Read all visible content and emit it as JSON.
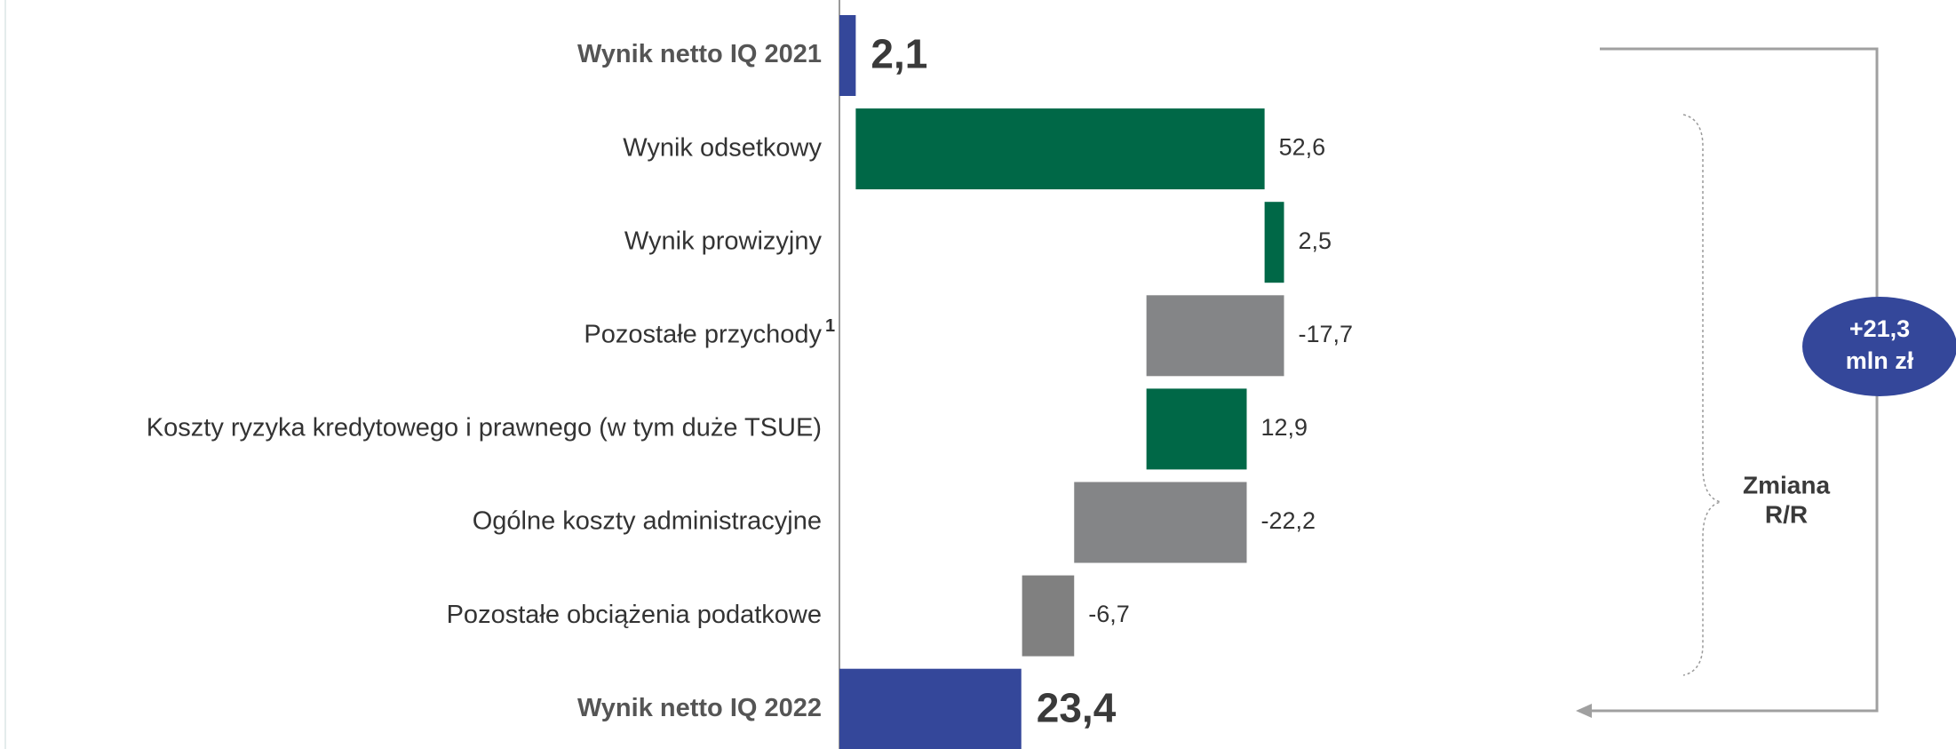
{
  "chart_data": {
    "type": "waterfall",
    "categories": [
      "Wynik netto IQ 2021",
      "Wynik odsetkowy",
      "Wynik prowizyjny",
      "Pozostałe przychody",
      "Koszty ryzyka kredytowego i prawnego (w tym duże TSUE)",
      "Ogólne koszty administracyjne",
      "Pozostałe obciążenia podatkowe",
      "Wynik netto IQ 2022"
    ],
    "category_notes": [
      null,
      null,
      null,
      "1",
      null,
      null,
      null,
      null
    ],
    "measure": [
      "total",
      "relative",
      "relative",
      "relative",
      "relative",
      "relative",
      "relative",
      "total"
    ],
    "values": [
      2.1,
      52.6,
      2.5,
      -17.7,
      12.9,
      -22.2,
      -6.7,
      23.4
    ],
    "value_labels": [
      "2,1",
      "52,6",
      "2,5",
      "-17,7",
      "12,9",
      "-22,2",
      "-6,7",
      "23,4"
    ],
    "colors": [
      "#34479a",
      "#006847",
      "#006847",
      "#848587",
      "#006847",
      "#848587",
      "#808080",
      "#34479a"
    ],
    "xlim": [
      0,
      60
    ],
    "change": {
      "value": 21.3,
      "label": "+21,3",
      "unit": "mln zł",
      "color": "#34479a"
    },
    "change_caption": [
      "Zmiana",
      "R/R"
    ]
  }
}
